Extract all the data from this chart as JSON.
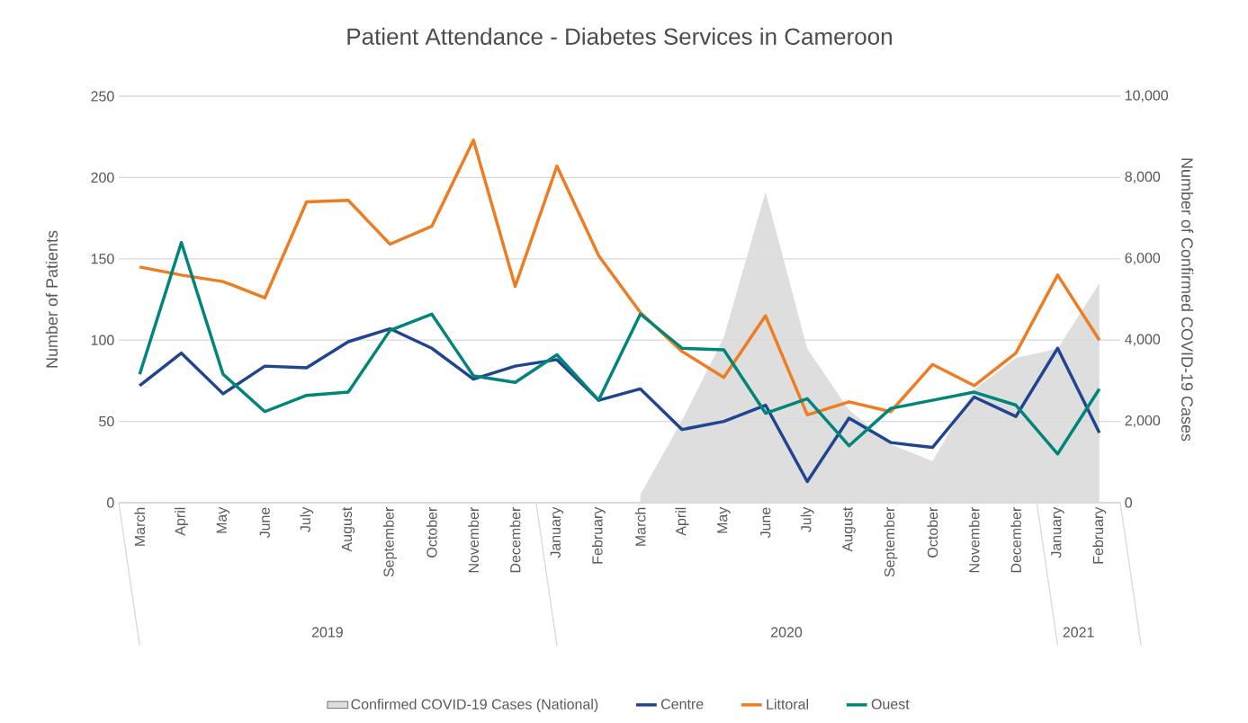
{
  "chart_data": {
    "type": "line",
    "title": "Patient Attendance - Diabetes Services in Cameroon",
    "ylabel": "Number of Patients",
    "y2label": "Number of Confirmed COVID-19 Cases",
    "categories": [
      "March",
      "April",
      "May",
      "June",
      "July",
      "August",
      "September",
      "October",
      "November",
      "December",
      "January",
      "February",
      "March",
      "April",
      "May",
      "June",
      "July",
      "August",
      "September",
      "October",
      "November",
      "December",
      "January",
      "February"
    ],
    "annotations": [
      "2019",
      "2020",
      "2021"
    ],
    "series": [
      {
        "name": "Confirmed COVID-19 Cases (National)",
        "type": "area",
        "axis": "y2",
        "color": "#dedede",
        "values": [
          null,
          null,
          null,
          null,
          null,
          null,
          null,
          null,
          null,
          null,
          null,
          null,
          200,
          2030,
          4070,
          7650,
          3790,
          2280,
          1440,
          1020,
          2780,
          3560,
          3790,
          5400
        ]
      },
      {
        "name": "Centre",
        "color": "#1f4590",
        "values": [
          72,
          92,
          67,
          84,
          83,
          99,
          107,
          95,
          76,
          84,
          88,
          63,
          70,
          45,
          50,
          60,
          13,
          52,
          37,
          34,
          65,
          53,
          95,
          43
        ]
      },
      {
        "name": "Littoral",
        "color": "#ee7d22",
        "values": [
          145,
          140,
          136,
          126,
          185,
          186,
          159,
          170,
          223,
          133,
          207,
          152,
          117,
          93,
          77,
          115,
          54,
          62,
          56,
          85,
          72,
          92,
          140,
          100
        ]
      },
      {
        "name": "Ouest",
        "color": "#00857a",
        "values": [
          79,
          160,
          79,
          56,
          66,
          68,
          106,
          116,
          78,
          74,
          91,
          63,
          116,
          95,
          94,
          55,
          64,
          35,
          58,
          63,
          68,
          60,
          30,
          70
        ]
      }
    ],
    "ylim": [
      0,
      250
    ],
    "yticks": [
      0,
      50,
      100,
      150,
      200,
      250
    ],
    "y2lim": [
      0,
      10000
    ],
    "y2ticks": [
      0,
      {
        "value": 2000,
        "label": "2,000"
      },
      {
        "value": 4000,
        "label": "4,000"
      },
      {
        "value": 6000,
        "label": "6,000"
      },
      {
        "value": 8000,
        "label": "8,000"
      },
      {
        "value": 10000,
        "label": "10,000"
      }
    ],
    "grid": "y",
    "legend": "bottom",
    "marker": "none",
    "line_style": "solid"
  }
}
